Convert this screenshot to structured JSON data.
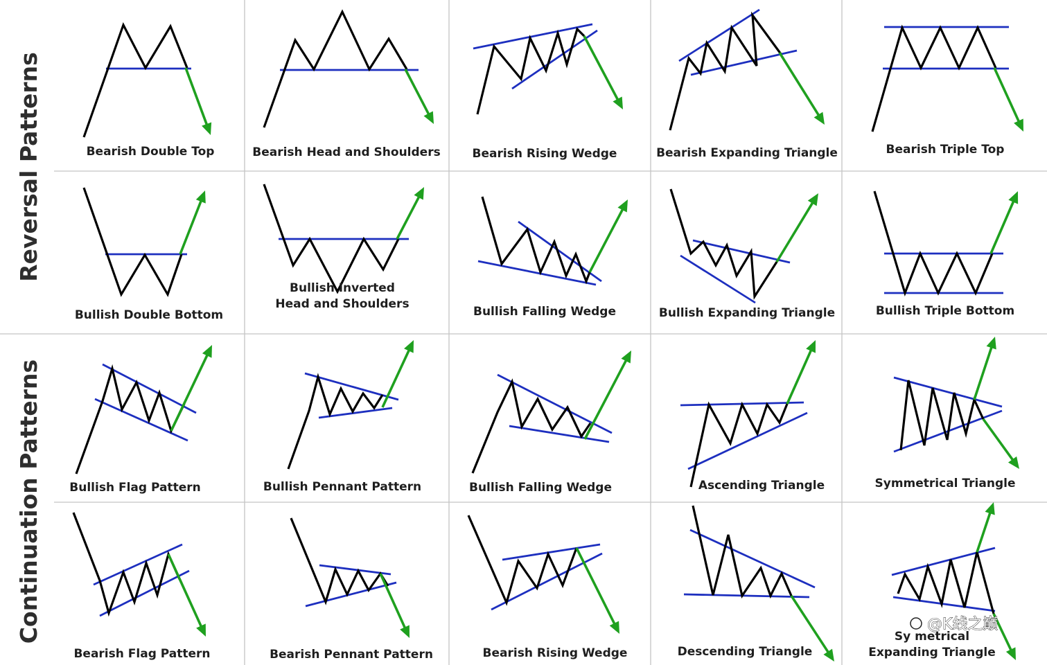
{
  "sections": [
    {
      "title": "Reversal Patterns"
    },
    {
      "title": "Continuation Patterns"
    }
  ],
  "patterns": [
    {
      "name": "Bearish Double Top",
      "lines": [
        "Bearish Double Top"
      ],
      "direction": "down"
    },
    {
      "name": "Bearish Head and Shoulders",
      "lines": [
        "Bearish Head and Shoulders"
      ],
      "direction": "down"
    },
    {
      "name": "Bearish Rising Wedge",
      "lines": [
        "Bearish Rising Wedge"
      ],
      "direction": "down"
    },
    {
      "name": "Bearish Expanding Triangle",
      "lines": [
        "Bearish Expanding Triangle"
      ],
      "direction": "down"
    },
    {
      "name": "Bearish Triple Top",
      "lines": [
        "Bearish Triple Top"
      ],
      "direction": "down"
    },
    {
      "name": "Bullish Double Bottom",
      "lines": [
        "Bullish Double Bottom"
      ],
      "direction": "up"
    },
    {
      "name": "Bullish Inverted Head and Shoulders",
      "lines": [
        "Bullish Inverted",
        "Head and Shoulders"
      ],
      "direction": "up"
    },
    {
      "name": "Bullish Falling Wedge",
      "lines": [
        "Bullish Falling Wedge"
      ],
      "direction": "up"
    },
    {
      "name": "Bullish Expanding Triangle",
      "lines": [
        "Bullish Expanding Triangle"
      ],
      "direction": "up"
    },
    {
      "name": "Bullish Triple Bottom",
      "lines": [
        "Bullish Triple Bottom"
      ],
      "direction": "up"
    },
    {
      "name": "Bullish Flag Pattern",
      "lines": [
        "Bullish Flag Pattern"
      ],
      "direction": "up"
    },
    {
      "name": "Bullish Pennant Pattern",
      "lines": [
        "Bullish Pennant Pattern"
      ],
      "direction": "up"
    },
    {
      "name": "Bullish Falling Wedge",
      "lines": [
        "Bullish Falling Wedge"
      ],
      "direction": "up"
    },
    {
      "name": "Ascending Triangle",
      "lines": [
        "Ascending Triangle"
      ],
      "direction": "up"
    },
    {
      "name": "Symmetrical Triangle",
      "lines": [
        "Symmetrical Triangle"
      ],
      "direction": "both"
    },
    {
      "name": "Bearish Flag Pattern",
      "lines": [
        "Bearish Flag Pattern"
      ],
      "direction": "down"
    },
    {
      "name": "Bearish Pennant Pattern",
      "lines": [
        "Bearish Pennant Pattern"
      ],
      "direction": "down"
    },
    {
      "name": "Bearish Rising Wedge",
      "lines": [
        "Bearish Rising Wedge"
      ],
      "direction": "down"
    },
    {
      "name": "Descending Triangle",
      "lines": [
        "Descending Triangle"
      ],
      "direction": "down"
    },
    {
      "name": "Symmetrical Expanding Triangle",
      "lines": [
        "Sy metrical",
        "Expanding Triangle"
      ],
      "direction": "both"
    }
  ],
  "watermark": "@K线之巅",
  "colors": {
    "price_line": "#000000",
    "trend_line": "#1d2fbf",
    "breakout_arrow": "#1fa01f",
    "grid": "#c4c4c4",
    "label_text": "#1e1e1e"
  }
}
